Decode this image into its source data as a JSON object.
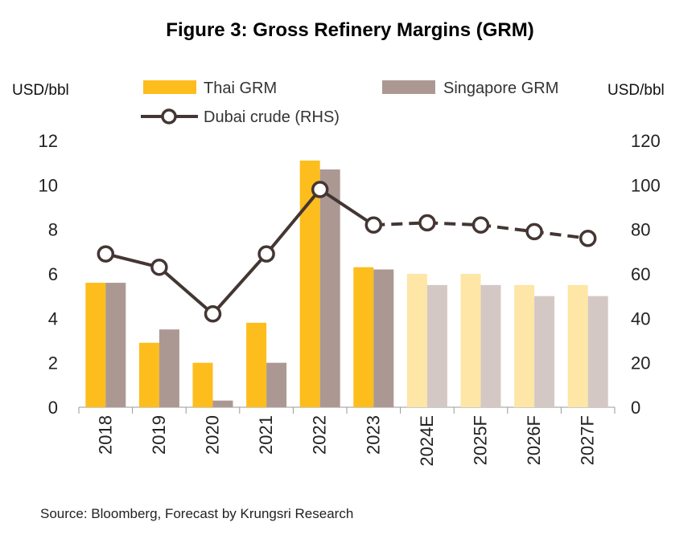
{
  "title": "Figure 3: Gross Refinery Margins  (GRM)",
  "source": "Source: Bloomberg, Forecast by Krungsri Research",
  "chart_data": {
    "type": "bar",
    "categories": [
      "2018",
      "2019",
      "2020",
      "2021",
      "2022",
      "2023",
      "2024E",
      "2025F",
      "2026F",
      "2027F"
    ],
    "forecast_from_index": 6,
    "left_axis": {
      "label": "USD/bbl",
      "range": [
        0,
        12
      ],
      "ticks": [
        "0",
        "2",
        "4",
        "6",
        "8",
        "10",
        "12"
      ]
    },
    "right_axis": {
      "label": "USD/bbl",
      "range": [
        0,
        120
      ],
      "ticks": [
        "0",
        "20",
        "40",
        "60",
        "80",
        "100",
        "120"
      ]
    },
    "series": [
      {
        "name": "Thai GRM",
        "kind": "bar",
        "axis": "left",
        "color": "#FDBD1C",
        "forecast_color": "#FDE6A6",
        "values": [
          5.6,
          2.9,
          2.0,
          3.8,
          11.1,
          6.3,
          6.0,
          6.0,
          5.5,
          5.5
        ]
      },
      {
        "name": "Singapore GRM",
        "kind": "bar",
        "axis": "left",
        "color": "#AC9893",
        "forecast_color": "#D4C8C5",
        "values": [
          5.6,
          3.5,
          0.3,
          2.0,
          10.7,
          6.2,
          5.5,
          5.5,
          5.0,
          5.0
        ]
      },
      {
        "name": "Dubai crude (RHS)",
        "kind": "line",
        "axis": "right",
        "color": "#433633",
        "values": [
          69,
          63,
          42,
          69,
          98,
          82,
          83,
          82,
          79,
          76
        ]
      }
    ],
    "grid": false,
    "legend": "top"
  }
}
